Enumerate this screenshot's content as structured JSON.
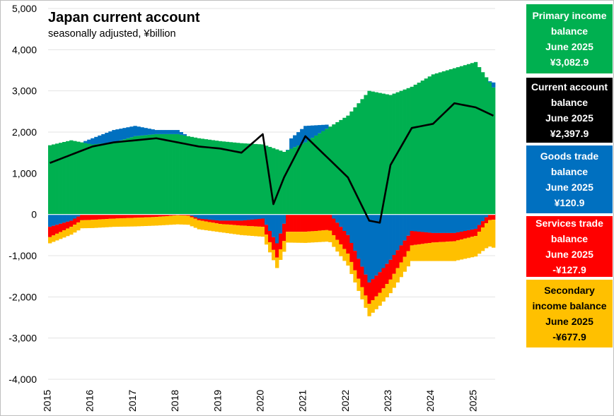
{
  "chart_data": {
    "type": "bar",
    "title": "Japan current account",
    "subtitle": "seasonally adjusted, ¥billion",
    "ylim": [
      -4000,
      5000
    ],
    "y_ticks": [
      "5,000",
      "4,000",
      "3,000",
      "2,000",
      "1,000",
      "0",
      "-1,000",
      "-2,000",
      "-3,000",
      "-4,000"
    ],
    "y_tick_values": [
      5000,
      4000,
      3000,
      2000,
      1000,
      0,
      -1000,
      -2000,
      -3000,
      -4000
    ],
    "x_ticks": [
      "2015",
      "2016",
      "2017",
      "2018",
      "2019",
      "2020",
      "2021",
      "2022",
      "2023",
      "2024",
      "2025"
    ],
    "x_start": "2015-01",
    "stacked": true,
    "legend_position": "right",
    "series": [
      {
        "name": "Primary income balance",
        "color": "#00B050",
        "anchor": {
          "2015-01": 1680,
          "2015-07": 1800,
          "2016-01": 1700,
          "2016-07": 1750,
          "2017-01": 1900,
          "2017-07": 1950,
          "2018-01": 1950,
          "2018-07": 1850,
          "2019-01": 1780,
          "2019-07": 1730,
          "2020-01": 1700,
          "2020-07": 1520,
          "2021-01": 1750,
          "2021-07": 2080,
          "2022-01": 2400,
          "2022-07": 3000,
          "2023-01": 2900,
          "2023-07": 3100,
          "2024-01": 3400,
          "2024-07": 3550,
          "2025-01": 3700,
          "2025-06": 3082.9
        }
      },
      {
        "name": "Current account balance",
        "color": "#000000",
        "anchor": {
          "2015-01": 1250,
          "2015-07": 1450,
          "2016-01": 1650,
          "2016-07": 1750,
          "2017-01": 1800,
          "2017-07": 1850,
          "2018-01": 1750,
          "2018-07": 1650,
          "2019-01": 1600,
          "2019-07": 1500,
          "2020-01": 1950,
          "2020-04": 250,
          "2020-07": 900,
          "2021-01": 1900,
          "2021-07": 1400,
          "2022-01": 900,
          "2022-07": -150,
          "2022-10": -200,
          "2023-01": 1200,
          "2023-07": 2100,
          "2024-01": 2200,
          "2024-07": 2700,
          "2025-01": 2600,
          "2025-06": 2397.9
        }
      },
      {
        "name": "Goods trade balance",
        "color": "#0070C0",
        "anchor": {
          "2015-01": -300,
          "2015-07": -150,
          "2016-01": 150,
          "2016-07": 300,
          "2017-01": 250,
          "2017-07": 100,
          "2018-01": 100,
          "2018-07": -100,
          "2019-01": -150,
          "2019-07": -150,
          "2020-01": -100,
          "2020-05": -700,
          "2020-09": 250,
          "2021-01": 400,
          "2021-07": 100,
          "2022-01": -500,
          "2022-07": -1650,
          "2022-10": -1400,
          "2023-01": -1100,
          "2023-07": -400,
          "2024-01": -450,
          "2024-07": -450,
          "2025-01": -350,
          "2025-06": 120.9
        }
      },
      {
        "name": "Services trade balance",
        "color": "#FF0000",
        "anchor": {
          "2015-01": -250,
          "2015-07": -150,
          "2016-01": -130,
          "2016-07": -100,
          "2017-01": -80,
          "2017-07": -60,
          "2018-01": -20,
          "2018-07": -40,
          "2019-01": -80,
          "2019-07": -120,
          "2020-01": -200,
          "2020-07": -420,
          "2021-01": -420,
          "2021-07": -380,
          "2022-01": -450,
          "2022-07": -520,
          "2023-01": -480,
          "2023-07": -350,
          "2024-01": -230,
          "2024-07": -200,
          "2025-01": -170,
          "2025-06": -127.9
        }
      },
      {
        "name": "Secondary income balance",
        "color": "#FFC000",
        "anchor": {
          "2015-01": -150,
          "2015-07": -190,
          "2016-01": -200,
          "2016-07": -200,
          "2017-01": -210,
          "2017-07": -210,
          "2018-01": -220,
          "2018-07": -220,
          "2019-01": -200,
          "2019-07": -230,
          "2020-01": -240,
          "2020-07": -260,
          "2021-01": -270,
          "2021-07": -280,
          "2022-01": -290,
          "2022-07": -300,
          "2023-01": -330,
          "2023-07": -380,
          "2024-01": -450,
          "2024-07": -480,
          "2025-01": -500,
          "2025-06": -677.9
        }
      }
    ]
  },
  "legend": [
    {
      "lines": [
        "Primary income",
        "balance",
        "June 2025",
        "¥3,082.9"
      ],
      "bg": "#00B050",
      "fg": "#ffffff"
    },
    {
      "lines": [
        "Current account",
        "balance",
        "June 2025",
        "¥2,397.9"
      ],
      "bg": "#000000",
      "fg": "#ffffff"
    },
    {
      "lines": [
        "Goods trade",
        "balance",
        "June 2025",
        "¥120.9"
      ],
      "bg": "#0070C0",
      "fg": "#ffffff"
    },
    {
      "lines": [
        "Services trade",
        "balance",
        "June 2025",
        "-¥127.9"
      ],
      "bg": "#FF0000",
      "fg": "#ffffff"
    },
    {
      "lines": [
        "Secondary",
        "income balance",
        "June 2025",
        "-¥677.9"
      ],
      "bg": "#FFC000",
      "fg": "#000000"
    }
  ]
}
